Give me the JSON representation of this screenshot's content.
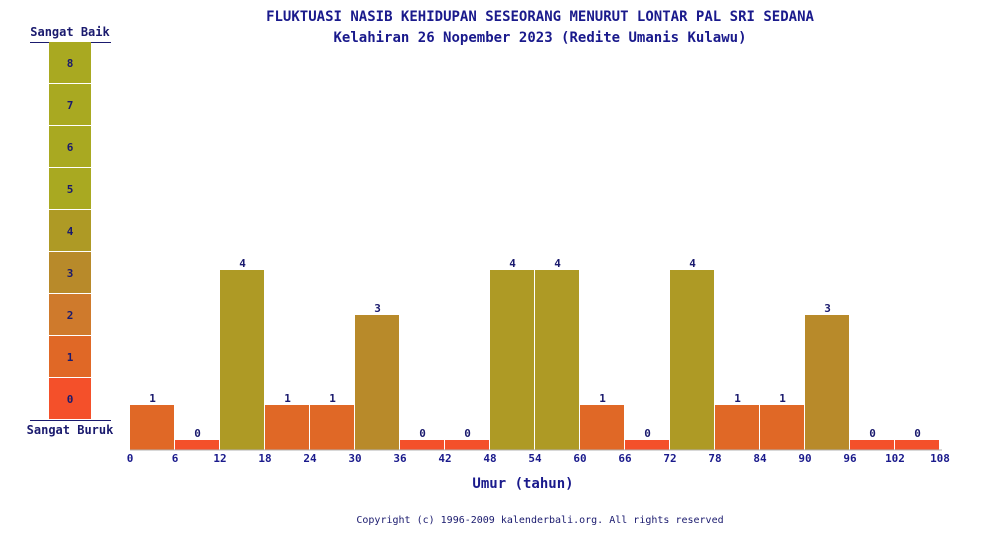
{
  "title": "FLUKTUASI NASIB KEHIDUPAN SESEORANG MENURUT LONTAR PAL SRI SEDANA",
  "subtitle": "Kelahiran 26 Nopember 2023 (Redite Umanis Kulawu)",
  "legend": {
    "top_label": "Sangat Baik",
    "bottom_label": "Sangat Buruk",
    "levels": [
      {
        "value": 8,
        "label": "8",
        "color": "#a9a921"
      },
      {
        "value": 7,
        "label": "7",
        "color": "#a9a921"
      },
      {
        "value": 6,
        "label": "6",
        "color": "#a9a921"
      },
      {
        "value": 5,
        "label": "5",
        "color": "#a9a921"
      },
      {
        "value": 4,
        "label": "4",
        "color": "#ae9a25"
      },
      {
        "value": 3,
        "label": "3",
        "color": "#b88a2a"
      },
      {
        "value": 2,
        "label": "2",
        "color": "#cf7a2c"
      },
      {
        "value": 1,
        "label": "1",
        "color": "#e06826"
      },
      {
        "value": 0,
        "label": "0",
        "color": "#f4502a"
      }
    ]
  },
  "chart_data": {
    "type": "bar",
    "title": "FLUKTUASI NASIB KEHIDUPAN SESEORANG MENURUT LONTAR PAL SRI SEDANA",
    "subtitle": "Kelahiran 26 Nopember 2023 (Redite Umanis Kulawu)",
    "xlabel": "Umur (tahun)",
    "ylabel": "",
    "x_ticks": [
      "0",
      "6",
      "12",
      "18",
      "24",
      "30",
      "36",
      "42",
      "48",
      "54",
      "60",
      "66",
      "72",
      "78",
      "84",
      "90",
      "96",
      "102",
      "108"
    ],
    "bins": [
      [
        0,
        6
      ],
      [
        6,
        12
      ],
      [
        12,
        18
      ],
      [
        18,
        24
      ],
      [
        24,
        30
      ],
      [
        30,
        36
      ],
      [
        36,
        42
      ],
      [
        42,
        48
      ],
      [
        48,
        54
      ],
      [
        54,
        60
      ],
      [
        60,
        66
      ],
      [
        66,
        72
      ],
      [
        72,
        78
      ],
      [
        78,
        84
      ],
      [
        84,
        90
      ],
      [
        90,
        96
      ],
      [
        96,
        102
      ],
      [
        102,
        108
      ]
    ],
    "values": [
      1,
      0,
      4,
      1,
      1,
      3,
      0,
      0,
      4,
      4,
      1,
      0,
      4,
      1,
      1,
      3,
      0,
      0
    ],
    "ylim": [
      0,
      8
    ],
    "grid": false,
    "colors": {
      "0": "#f4502a",
      "1": "#e06826",
      "3": "#b88a2a",
      "4": "#ae9a25"
    }
  },
  "copyright": "Copyright (c) 1996-2009 kalenderbali.org. All rights reserved"
}
